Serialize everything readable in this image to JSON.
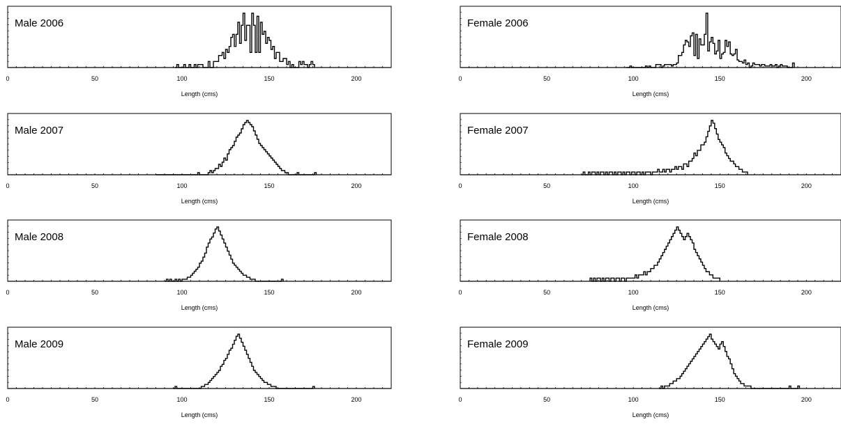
{
  "chart_data": [
    {
      "type": "histogram",
      "title": "Male 2006",
      "xlabel": "Length (cms)",
      "ylabel": "",
      "xlim": [
        0,
        220
      ],
      "xticks": [
        0,
        50,
        100,
        150,
        200
      ],
      "bin_width": 1,
      "grid": false,
      "legend": "none",
      "x_start": 96,
      "values": [
        0,
        1,
        0,
        0,
        0,
        1,
        0,
        0,
        1,
        0,
        0,
        1,
        0,
        1,
        1,
        1,
        0,
        0,
        0,
        2,
        0,
        0,
        2,
        2,
        2,
        4,
        4,
        5,
        3,
        6,
        5,
        7,
        10,
        11,
        7,
        11,
        15,
        8,
        14,
        18,
        9,
        14,
        14,
        5,
        18,
        14,
        5,
        17,
        5,
        15,
        11,
        12,
        8,
        10,
        9,
        6,
        7,
        3,
        5,
        5,
        2,
        2,
        3,
        3,
        1,
        2,
        0,
        1,
        0,
        0,
        0,
        2,
        1,
        2,
        1,
        1,
        0,
        1,
        2,
        1
      ]
    },
    {
      "type": "histogram",
      "title": "Female 2006",
      "xlabel": "Length (cms)",
      "ylabel": "",
      "xlim": [
        0,
        220
      ],
      "xticks": [
        0,
        50,
        100,
        150,
        200
      ],
      "bin_width": 1,
      "grid": false,
      "legend": "none",
      "x_start": 96,
      "values": [
        0,
        0,
        1,
        0,
        0,
        0,
        0,
        0,
        0,
        0,
        0,
        1,
        0,
        1,
        0,
        0,
        0,
        2,
        2,
        2,
        0,
        1,
        2,
        2,
        2,
        2,
        1,
        2,
        2,
        3,
        8,
        8,
        10,
        15,
        18,
        17,
        14,
        21,
        23,
        8,
        22,
        6,
        19,
        15,
        15,
        22,
        36,
        11,
        17,
        20,
        16,
        9,
        11,
        18,
        6,
        9,
        10,
        18,
        14,
        17,
        9,
        8,
        9,
        12,
        5,
        4,
        4,
        3,
        5,
        2,
        3,
        0,
        1,
        3,
        2,
        2,
        2,
        1,
        2,
        2,
        1,
        1,
        1,
        2,
        1,
        1,
        2,
        0,
        1,
        2,
        1,
        1,
        1,
        0,
        0,
        0,
        3
      ]
    },
    {
      "type": "histogram",
      "title": "Male 2007",
      "xlabel": "Length (cms)",
      "ylabel": "",
      "xlim": [
        0,
        220
      ],
      "xticks": [
        0,
        50,
        100,
        150,
        200
      ],
      "bin_width": 1,
      "grid": false,
      "legend": "none",
      "x_start": 85,
      "values": [
        0,
        0,
        0,
        0,
        0,
        0,
        0,
        0,
        0,
        0,
        0,
        0,
        0,
        0,
        0,
        0,
        0,
        0,
        0,
        0,
        0,
        0,
        0,
        0,
        1,
        0,
        0,
        0,
        0,
        0,
        1,
        2,
        1,
        2,
        3,
        3,
        5,
        4,
        6,
        8,
        7,
        10,
        12,
        13,
        14,
        16,
        18,
        19,
        20,
        22,
        24,
        25,
        26,
        25,
        24,
        23,
        21,
        19,
        17,
        15,
        14,
        13,
        12,
        11,
        10,
        9,
        8,
        7,
        6,
        5,
        4,
        3,
        2,
        2,
        1,
        1,
        0,
        0,
        0,
        0,
        0,
        1,
        0,
        0,
        0,
        0,
        0,
        0,
        0,
        0,
        0,
        1
      ]
    },
    {
      "type": "histogram",
      "title": "Female 2007",
      "xlabel": "Length (cms)",
      "ylabel": "",
      "xlim": [
        0,
        220
      ],
      "xticks": [
        0,
        50,
        100,
        150,
        200
      ],
      "bin_width": 1,
      "grid": false,
      "legend": "none",
      "x_start": 70,
      "values": [
        0,
        1,
        0,
        0,
        1,
        0,
        1,
        1,
        0,
        1,
        0,
        1,
        1,
        0,
        1,
        0,
        1,
        1,
        0,
        1,
        0,
        1,
        1,
        0,
        1,
        0,
        1,
        1,
        0,
        1,
        1,
        0,
        1,
        1,
        0,
        1,
        0,
        1,
        1,
        1,
        0,
        1,
        1,
        1,
        2,
        1,
        1,
        2,
        1,
        2,
        2,
        1,
        2,
        2,
        3,
        2,
        3,
        3,
        2,
        4,
        4,
        3,
        5,
        5,
        6,
        8,
        7,
        9,
        9,
        11,
        11,
        12,
        14,
        16,
        18,
        20,
        19,
        17,
        15,
        13,
        12,
        11,
        10,
        8,
        7,
        6,
        5,
        5,
        4,
        3,
        3,
        2,
        2,
        1,
        1,
        1
      ]
    },
    {
      "type": "histogram",
      "title": "Male 2008",
      "xlabel": "Length (cms)",
      "ylabel": "",
      "xlim": [
        0,
        220
      ],
      "xticks": [
        0,
        50,
        100,
        150,
        200
      ],
      "bin_width": 1,
      "grid": false,
      "legend": "none",
      "x_start": 90,
      "values": [
        0,
        1,
        0,
        1,
        0,
        0,
        1,
        0,
        1,
        0,
        1,
        1,
        1,
        2,
        2,
        3,
        4,
        5,
        6,
        7,
        9,
        10,
        12,
        14,
        17,
        19,
        21,
        22,
        24,
        26,
        27,
        25,
        23,
        21,
        19,
        17,
        15,
        13,
        11,
        9,
        8,
        7,
        6,
        5,
        4,
        3,
        3,
        2,
        2,
        1,
        1,
        1,
        0,
        0,
        0,
        0,
        0,
        0,
        0,
        0,
        0,
        0,
        0,
        0,
        0,
        0,
        0,
        1
      ]
    },
    {
      "type": "histogram",
      "title": "Female 2008",
      "xlabel": "Length (cms)",
      "ylabel": "",
      "xlim": [
        0,
        220
      ],
      "xticks": [
        0,
        50,
        100,
        150,
        200
      ],
      "bin_width": 1,
      "grid": false,
      "legend": "none",
      "x_start": 75,
      "values": [
        1,
        0,
        1,
        0,
        1,
        1,
        0,
        1,
        0,
        1,
        1,
        0,
        1,
        1,
        0,
        1,
        1,
        0,
        1,
        1,
        0,
        1,
        1,
        1,
        1,
        1,
        2,
        1,
        2,
        2,
        2,
        3,
        2,
        3,
        3,
        4,
        4,
        5,
        5,
        6,
        7,
        8,
        9,
        10,
        11,
        12,
        13,
        14,
        15,
        16,
        17,
        16,
        15,
        14,
        13,
        14,
        15,
        14,
        13,
        12,
        10,
        9,
        8,
        7,
        6,
        5,
        4,
        3,
        3,
        2,
        2,
        1,
        1,
        1,
        1
      ]
    },
    {
      "type": "histogram",
      "title": "Male 2009",
      "xlabel": "Length (cms)",
      "ylabel": "",
      "xlim": [
        0,
        220
      ],
      "xticks": [
        0,
        50,
        100,
        150,
        200
      ],
      "bin_width": 1,
      "grid": false,
      "legend": "none",
      "x_start": 95,
      "values": [
        0,
        1,
        0,
        0,
        0,
        0,
        0,
        0,
        0,
        0,
        0,
        0,
        0,
        0,
        0,
        0,
        1,
        1,
        2,
        2,
        3,
        4,
        5,
        6,
        7,
        8,
        9,
        11,
        12,
        14,
        15,
        17,
        19,
        20,
        22,
        24,
        26,
        27,
        25,
        23,
        21,
        19,
        17,
        15,
        13,
        11,
        9,
        8,
        7,
        6,
        5,
        4,
        3,
        3,
        2,
        2,
        1,
        1,
        1,
        0,
        0,
        0,
        0,
        0,
        0,
        0,
        0,
        0,
        0,
        0,
        0,
        0,
        0,
        0,
        0,
        0,
        0,
        0,
        0,
        0,
        1
      ]
    },
    {
      "type": "histogram",
      "title": "Female 2009",
      "xlabel": "Length (cms)",
      "ylabel": "",
      "xlim": [
        0,
        220
      ],
      "xticks": [
        0,
        50,
        100,
        150,
        200
      ],
      "bin_width": 1,
      "grid": false,
      "legend": "none",
      "x_start": 115,
      "values": [
        0,
        1,
        0,
        1,
        1,
        1,
        2,
        2,
        3,
        3,
        4,
        4,
        5,
        6,
        7,
        8,
        9,
        10,
        11,
        12,
        13,
        14,
        15,
        16,
        17,
        18,
        19,
        20,
        21,
        22,
        20,
        19,
        18,
        17,
        16,
        18,
        19,
        17,
        15,
        13,
        12,
        10,
        8,
        6,
        5,
        4,
        3,
        2,
        2,
        1,
        1,
        1,
        1,
        0,
        0,
        0,
        0,
        0,
        0,
        0,
        0,
        0,
        0,
        0,
        0,
        0,
        0,
        0,
        0,
        0,
        0,
        0,
        0,
        0,
        0,
        1,
        0,
        0,
        0,
        0,
        1
      ]
    }
  ]
}
